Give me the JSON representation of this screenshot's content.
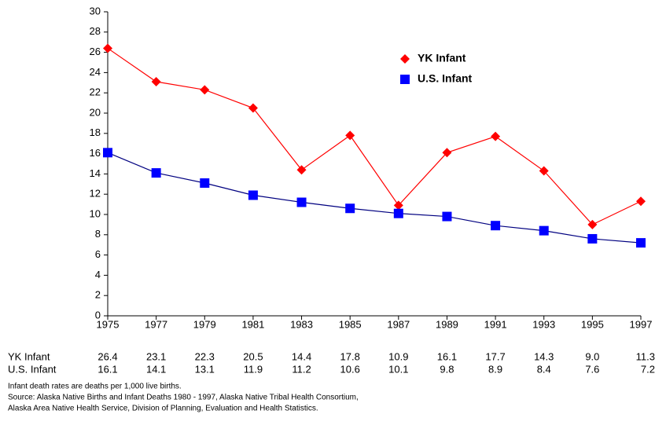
{
  "chart_data": {
    "type": "line",
    "x": [
      1975,
      1977,
      1979,
      1981,
      1983,
      1985,
      1987,
      1989,
      1991,
      1993,
      1995,
      1997
    ],
    "xlim": [
      1975,
      1997
    ],
    "xticks": [
      1975,
      1977,
      1979,
      1981,
      1983,
      1985,
      1987,
      1989,
      1991,
      1993,
      1995,
      1997
    ],
    "ylim": [
      0,
      30
    ],
    "yticks": [
      0,
      2,
      4,
      6,
      8,
      10,
      12,
      14,
      16,
      18,
      20,
      22,
      24,
      26,
      28,
      30
    ],
    "grid": false,
    "legend": "upper right",
    "series": [
      {
        "name": "YK Infant",
        "color": "#ff0000",
        "marker": "diamond",
        "values": [
          26.4,
          23.1,
          22.3,
          20.5,
          14.4,
          17.8,
          10.9,
          16.1,
          17.7,
          14.3,
          9.0,
          11.3
        ],
        "value_labels": [
          "26.4",
          "23.1",
          "22.3",
          "20.5",
          "14.4",
          "17.8",
          "10.9",
          "16.1",
          "17.7",
          "14.3",
          "9.0",
          "11.3"
        ]
      },
      {
        "name": "U.S. Infant",
        "color": "#0000ff",
        "marker": "square",
        "values": [
          16.1,
          14.1,
          13.1,
          11.9,
          11.2,
          10.6,
          10.1,
          9.8,
          8.9,
          8.4,
          7.6,
          7.2
        ]
      }
    ],
    "notes": [
      "Infant death rates are deaths per 1,000 live births.",
      "Source: Alaska Native Births and Infant Deaths 1980 - 1997, Alaska Native Tribal Health Consortium,",
      "Alaska Area Native Health Service, Division of Planning, Evaluation and Health Statistics."
    ]
  }
}
